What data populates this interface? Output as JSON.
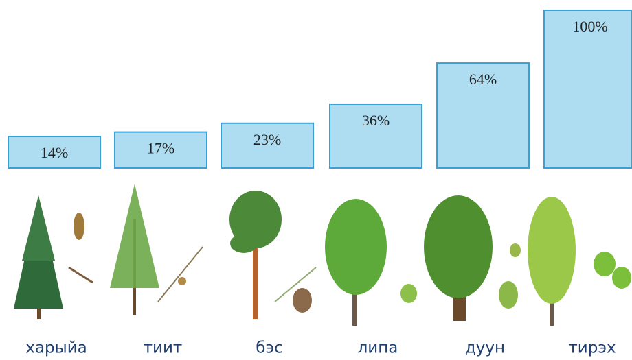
{
  "chart_data": {
    "type": "bar",
    "categories": [
      "харыйа",
      "тиит",
      "бэс",
      "липа",
      "дуун",
      "тирэх"
    ],
    "values": [
      14,
      17,
      23,
      36,
      64,
      100
    ],
    "value_labels": [
      "14%",
      "17%",
      "23%",
      "36%",
      "64%",
      "100%"
    ],
    "color": "#aedcf0"
  }
}
